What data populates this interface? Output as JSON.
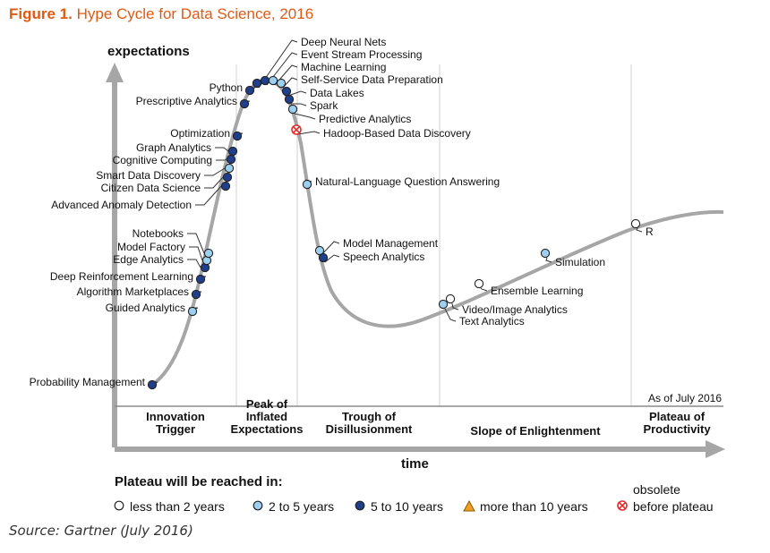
{
  "figure": {
    "label": "Figure 1.",
    "title": "Hype Cycle for Data Science, 2016",
    "source": "Source: Gartner (July 2016)"
  },
  "chart_data": {
    "type": "scatter",
    "ylabel": "expectations",
    "xlabel": "time",
    "as_of": "As of July 2016",
    "phases": [
      [
        "Innovation",
        "Trigger"
      ],
      [
        "Peak of",
        "Inflated",
        "Expectations"
      ],
      [
        "Trough of",
        "Disillusionment"
      ],
      [
        "Slope of Enlightenment"
      ],
      [
        "Plateau of",
        "Productivity"
      ]
    ],
    "legend_title": "Plateau will be reached in:",
    "legend": [
      {
        "key": "lt2",
        "label": "less than 2 years"
      },
      {
        "key": "2to5",
        "label": "2 to 5 years"
      },
      {
        "key": "5to10",
        "label": "5 to 10 years"
      },
      {
        "key": "gt10",
        "label": "more than 10 years"
      },
      {
        "key": "obsolete",
        "label": [
          "obsolete",
          "before plateau"
        ]
      }
    ],
    "colors": {
      "lt2": "#ffffff",
      "2to5": "#9ccff0",
      "5to10": "#1f3f8c",
      "gt10": "#f0a020",
      "obsolete": "#e03030",
      "curve": "#a6a6a6"
    },
    "technologies": [
      {
        "name": "Probability Management",
        "category": "5to10"
      },
      {
        "name": "Guided Analytics",
        "category": "2to5"
      },
      {
        "name": "Algorithm Marketplaces",
        "category": "5to10"
      },
      {
        "name": "Deep Reinforcement Learning",
        "category": "5to10"
      },
      {
        "name": "Edge Analytics",
        "category": "5to10"
      },
      {
        "name": "Model Factory",
        "category": "2to5"
      },
      {
        "name": "Notebooks",
        "category": "2to5"
      },
      {
        "name": "Advanced Anomaly Detection",
        "category": "5to10"
      },
      {
        "name": "Citizen Data Science",
        "category": "5to10"
      },
      {
        "name": "Smart Data Discovery",
        "category": "2to5"
      },
      {
        "name": "Cognitive Computing",
        "category": "5to10"
      },
      {
        "name": "Graph Analytics",
        "category": "5to10"
      },
      {
        "name": "Optimization",
        "category": "5to10"
      },
      {
        "name": "Prescriptive Analytics",
        "category": "5to10"
      },
      {
        "name": "Python",
        "category": "5to10"
      },
      {
        "name": "Deep Neural Nets",
        "category": "5to10"
      },
      {
        "name": "Event Stream Processing",
        "category": "5to10"
      },
      {
        "name": "Machine Learning",
        "category": "2to5"
      },
      {
        "name": "Self-Service Data Preparation",
        "category": "2to5"
      },
      {
        "name": "Data Lakes",
        "category": "5to10"
      },
      {
        "name": "Spark",
        "category": "5to10"
      },
      {
        "name": "Predictive Analytics",
        "category": "2to5"
      },
      {
        "name": "Hadoop-Based Data Discovery",
        "category": "obsolete"
      },
      {
        "name": "Natural-Language Question Answering",
        "category": "2to5"
      },
      {
        "name": "Model Management",
        "category": "2to5"
      },
      {
        "name": "Speech Analytics",
        "category": "5to10"
      },
      {
        "name": "Text Analytics",
        "category": "2to5"
      },
      {
        "name": "Video/Image Analytics",
        "category": "lt2"
      },
      {
        "name": "Ensemble Learning",
        "category": "lt2"
      },
      {
        "name": "Simulation",
        "category": "2to5"
      },
      {
        "name": "R",
        "category": "lt2"
      }
    ]
  }
}
